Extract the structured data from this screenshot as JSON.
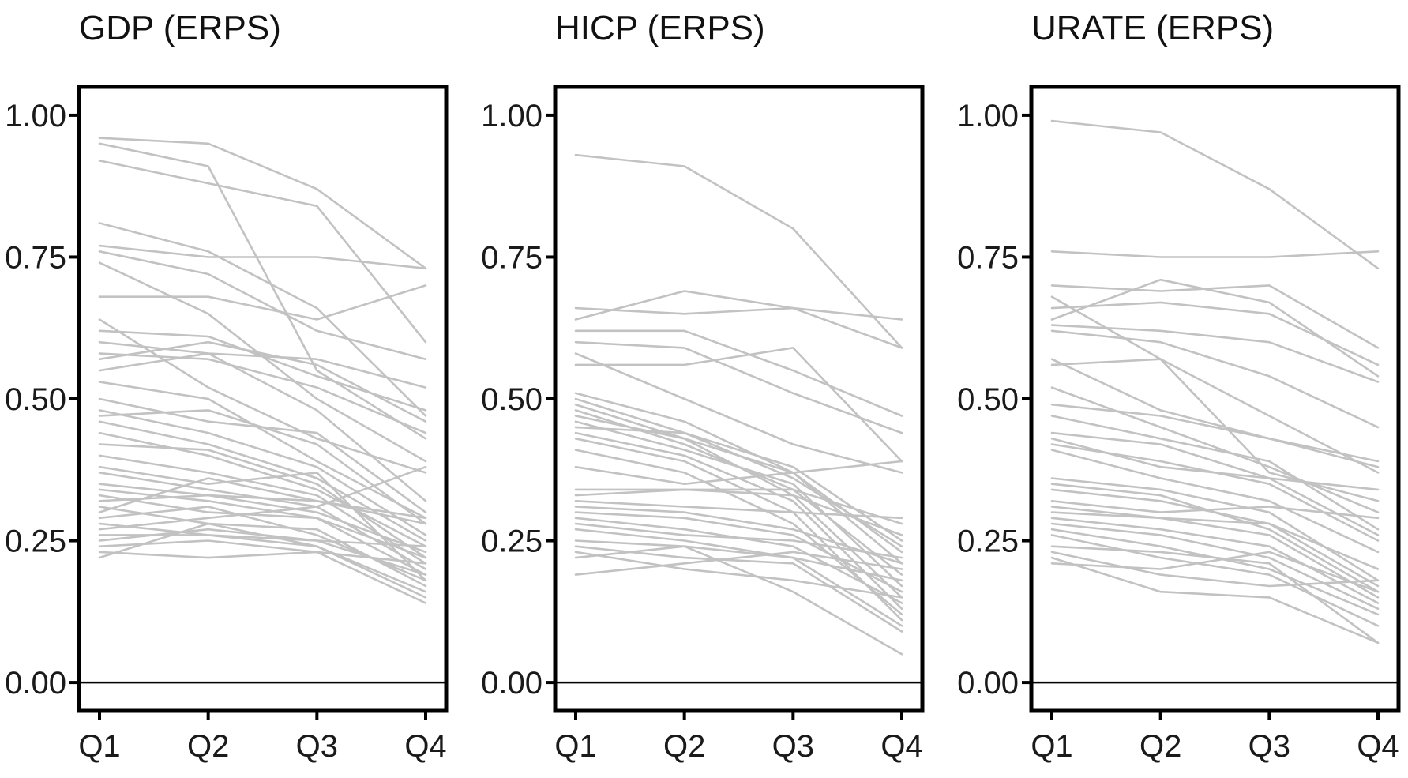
{
  "chart_data": [
    {
      "type": "line",
      "title": "GDP (ERPS)",
      "categories": [
        "Q1",
        "Q2",
        "Q3",
        "Q4"
      ],
      "yticks": [
        "0.00",
        "0.25",
        "0.50",
        "0.75",
        "1.00"
      ],
      "ylim": [
        -0.05,
        1.05
      ],
      "xlabel": "",
      "ylabel": "",
      "grid": false,
      "reference_line": 0,
      "line_color": "#c2c2c2",
      "series": [
        {
          "values": [
            0.96,
            0.95,
            0.87,
            0.73
          ]
        },
        {
          "values": [
            0.95,
            0.91,
            0.55,
            0.43
          ]
        },
        {
          "values": [
            0.92,
            0.88,
            0.84,
            0.6
          ]
        },
        {
          "values": [
            0.81,
            0.76,
            0.66,
            0.47
          ]
        },
        {
          "values": [
            0.77,
            0.75,
            0.75,
            0.73
          ]
        },
        {
          "values": [
            0.76,
            0.72,
            0.62,
            0.57
          ]
        },
        {
          "values": [
            0.74,
            0.65,
            0.5,
            0.39
          ]
        },
        {
          "values": [
            0.68,
            0.68,
            0.64,
            0.7
          ]
        },
        {
          "values": [
            0.64,
            0.52,
            0.43,
            0.37
          ]
        },
        {
          "values": [
            0.62,
            0.61,
            0.54,
            0.48
          ]
        },
        {
          "values": [
            0.6,
            0.58,
            0.57,
            0.52
          ]
        },
        {
          "values": [
            0.58,
            0.57,
            0.52,
            0.44
          ]
        },
        {
          "values": [
            0.57,
            0.6,
            0.56,
            0.46
          ]
        },
        {
          "values": [
            0.55,
            0.58,
            0.48,
            0.32
          ]
        },
        {
          "values": [
            0.53,
            0.5,
            0.39,
            0.29
          ]
        },
        {
          "values": [
            0.5,
            0.46,
            0.44,
            0.3
          ]
        },
        {
          "values": [
            0.48,
            0.44,
            0.38,
            0.26
          ]
        },
        {
          "values": [
            0.47,
            0.48,
            0.42,
            0.28
          ]
        },
        {
          "values": [
            0.46,
            0.42,
            0.36,
            0.25
          ]
        },
        {
          "values": [
            0.44,
            0.4,
            0.34,
            0.24
          ]
        },
        {
          "values": [
            0.42,
            0.41,
            0.35,
            0.22
          ]
        },
        {
          "values": [
            0.4,
            0.37,
            0.33,
            0.21
          ]
        },
        {
          "values": [
            0.38,
            0.35,
            0.37,
            0.18
          ]
        },
        {
          "values": [
            0.37,
            0.34,
            0.31,
            0.2
          ]
        },
        {
          "values": [
            0.35,
            0.33,
            0.32,
            0.29
          ]
        },
        {
          "values": [
            0.34,
            0.32,
            0.29,
            0.22
          ]
        },
        {
          "values": [
            0.33,
            0.3,
            0.29,
            0.19
          ]
        },
        {
          "values": [
            0.32,
            0.33,
            0.3,
            0.23
          ]
        },
        {
          "values": [
            0.31,
            0.28,
            0.27,
            0.17
          ]
        },
        {
          "values": [
            0.3,
            0.36,
            0.32,
            0.28
          ]
        },
        {
          "values": [
            0.29,
            0.31,
            0.26,
            0.18
          ]
        },
        {
          "values": [
            0.28,
            0.26,
            0.25,
            0.24
          ]
        },
        {
          "values": [
            0.27,
            0.29,
            0.31,
            0.38
          ]
        },
        {
          "values": [
            0.26,
            0.26,
            0.24,
            0.16
          ]
        },
        {
          "values": [
            0.25,
            0.27,
            0.25,
            0.19
          ]
        },
        {
          "values": [
            0.24,
            0.25,
            0.23,
            0.14
          ]
        },
        {
          "values": [
            0.23,
            0.22,
            0.23,
            0.21
          ]
        },
        {
          "values": [
            0.22,
            0.28,
            0.24,
            0.15
          ]
        }
      ]
    },
    {
      "type": "line",
      "title": "HICP (ERPS)",
      "categories": [
        "Q1",
        "Q2",
        "Q3",
        "Q4"
      ],
      "yticks": [
        "0.00",
        "0.25",
        "0.50",
        "0.75",
        "1.00"
      ],
      "ylim": [
        -0.05,
        1.05
      ],
      "xlabel": "",
      "ylabel": "",
      "grid": false,
      "reference_line": 0,
      "line_color": "#c2c2c2",
      "series": [
        {
          "values": [
            0.93,
            0.91,
            0.8,
            0.59
          ]
        },
        {
          "values": [
            0.66,
            0.65,
            0.66,
            0.64
          ]
        },
        {
          "values": [
            0.64,
            0.69,
            0.66,
            0.59
          ]
        },
        {
          "values": [
            0.62,
            0.62,
            0.55,
            0.47
          ]
        },
        {
          "values": [
            0.6,
            0.59,
            0.51,
            0.44
          ]
        },
        {
          "values": [
            0.58,
            0.5,
            0.42,
            0.37
          ]
        },
        {
          "values": [
            0.56,
            0.56,
            0.59,
            0.39
          ]
        },
        {
          "values": [
            0.51,
            0.46,
            0.37,
            0.23
          ]
        },
        {
          "values": [
            0.5,
            0.44,
            0.38,
            0.25
          ]
        },
        {
          "values": [
            0.49,
            0.43,
            0.37,
            0.21
          ]
        },
        {
          "values": [
            0.48,
            0.42,
            0.34,
            0.19
          ]
        },
        {
          "values": [
            0.47,
            0.43,
            0.33,
            0.15
          ]
        },
        {
          "values": [
            0.46,
            0.41,
            0.35,
            0.17
          ]
        },
        {
          "values": [
            0.45,
            0.44,
            0.36,
            0.24
          ]
        },
        {
          "values": [
            0.44,
            0.4,
            0.32,
            0.13
          ]
        },
        {
          "values": [
            0.43,
            0.39,
            0.3,
            0.11
          ]
        },
        {
          "values": [
            0.41,
            0.37,
            0.28,
            0.12
          ]
        },
        {
          "values": [
            0.38,
            0.35,
            0.37,
            0.39
          ]
        },
        {
          "values": [
            0.34,
            0.34,
            0.34,
            0.28
          ]
        },
        {
          "values": [
            0.33,
            0.34,
            0.33,
            0.26
          ]
        },
        {
          "values": [
            0.32,
            0.31,
            0.3,
            0.29
          ]
        },
        {
          "values": [
            0.31,
            0.3,
            0.27,
            0.21
          ]
        },
        {
          "values": [
            0.3,
            0.29,
            0.26,
            0.16
          ]
        },
        {
          "values": [
            0.29,
            0.27,
            0.24,
            0.14
          ]
        },
        {
          "values": [
            0.28,
            0.26,
            0.25,
            0.22
          ]
        },
        {
          "values": [
            0.27,
            0.25,
            0.22,
            0.1
          ]
        },
        {
          "values": [
            0.25,
            0.24,
            0.22,
            0.18
          ]
        },
        {
          "values": [
            0.24,
            0.22,
            0.21,
            0.09
          ]
        },
        {
          "values": [
            0.23,
            0.2,
            0.18,
            0.15
          ]
        },
        {
          "values": [
            0.22,
            0.24,
            0.16,
            0.05
          ]
        },
        {
          "values": [
            0.19,
            0.21,
            0.23,
            0.2
          ]
        }
      ]
    },
    {
      "type": "line",
      "title": "URATE (ERPS)",
      "categories": [
        "Q1",
        "Q2",
        "Q3",
        "Q4"
      ],
      "yticks": [
        "0.00",
        "0.25",
        "0.50",
        "0.75",
        "1.00"
      ],
      "ylim": [
        -0.05,
        1.05
      ],
      "xlabel": "",
      "ylabel": "",
      "grid": false,
      "reference_line": 0,
      "line_color": "#c2c2c2",
      "series": [
        {
          "values": [
            0.99,
            0.97,
            0.87,
            0.73
          ]
        },
        {
          "values": [
            0.76,
            0.75,
            0.75,
            0.76
          ]
        },
        {
          "values": [
            0.7,
            0.69,
            0.7,
            0.59
          ]
        },
        {
          "values": [
            0.68,
            0.57,
            0.47,
            0.37
          ]
        },
        {
          "values": [
            0.66,
            0.67,
            0.65,
            0.56
          ]
        },
        {
          "values": [
            0.64,
            0.71,
            0.67,
            0.54
          ]
        },
        {
          "values": [
            0.63,
            0.62,
            0.6,
            0.53
          ]
        },
        {
          "values": [
            0.62,
            0.6,
            0.54,
            0.45
          ]
        },
        {
          "values": [
            0.57,
            0.48,
            0.43,
            0.39
          ]
        },
        {
          "values": [
            0.56,
            0.57,
            0.37,
            0.32
          ]
        },
        {
          "values": [
            0.52,
            0.45,
            0.38,
            0.3
          ]
        },
        {
          "values": [
            0.49,
            0.47,
            0.43,
            0.38
          ]
        },
        {
          "values": [
            0.47,
            0.43,
            0.39,
            0.27
          ]
        },
        {
          "values": [
            0.44,
            0.42,
            0.36,
            0.26
          ]
        },
        {
          "values": [
            0.43,
            0.38,
            0.36,
            0.34
          ]
        },
        {
          "values": [
            0.42,
            0.39,
            0.35,
            0.25
          ]
        },
        {
          "values": [
            0.41,
            0.36,
            0.32,
            0.23
          ]
        },
        {
          "values": [
            0.36,
            0.34,
            0.3,
            0.18
          ]
        },
        {
          "values": [
            0.35,
            0.33,
            0.27,
            0.16
          ]
        },
        {
          "values": [
            0.34,
            0.32,
            0.28,
            0.17
          ]
        },
        {
          "values": [
            0.32,
            0.3,
            0.31,
            0.29
          ]
        },
        {
          "values": [
            0.31,
            0.29,
            0.26,
            0.15
          ]
        },
        {
          "values": [
            0.3,
            0.29,
            0.28,
            0.2
          ]
        },
        {
          "values": [
            0.29,
            0.27,
            0.24,
            0.14
          ]
        },
        {
          "values": [
            0.28,
            0.26,
            0.22,
            0.13
          ]
        },
        {
          "values": [
            0.27,
            0.24,
            0.2,
            0.12
          ]
        },
        {
          "values": [
            0.26,
            0.22,
            0.19,
            0.1
          ]
        },
        {
          "values": [
            0.24,
            0.23,
            0.21,
            0.07
          ]
        },
        {
          "values": [
            0.23,
            0.19,
            0.17,
            0.18
          ]
        },
        {
          "values": [
            0.22,
            0.16,
            0.15,
            0.07
          ]
        },
        {
          "values": [
            0.21,
            0.2,
            0.23,
            0.16
          ]
        }
      ]
    }
  ]
}
